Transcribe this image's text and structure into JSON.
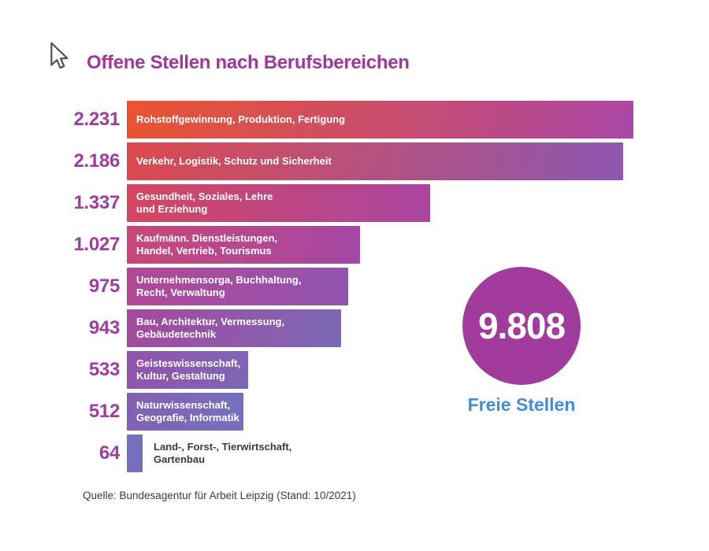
{
  "title": "Offene Stellen nach Berufsbereichen",
  "colors": {
    "title_color": "#A335A3",
    "value_color": "#A13AA2",
    "circle_color": "#A23C9C",
    "caption_color": "#3F8EDB",
    "footer_color": "#3C3C3C",
    "dark_text_color": "#3A3A3A"
  },
  "chart_data": {
    "type": "bar",
    "orientation": "horizontal",
    "title": "Offene Stellen nach Berufsbereichen",
    "xlim": [
      0,
      2231
    ],
    "grid": false,
    "legend": "none",
    "categories": [
      "Rohstoffgewinnung, Produktion, Fertigung",
      "Verkehr, Logistik, Schutz und Sicherheit",
      "Gesundheit, Soziales, Lehre und Erziehung",
      "Kaufmänn. Dienstleistungen, Handel, Vertrieb, Tourismus",
      "Unternehmensorga, Buchhaltung, Recht, Verwaltung",
      "Bau, Architektur, Vermessung, Gebäudetechnik",
      "Geisteswissenschaft, Kultur, Gestaltung",
      "Naturwissenschaft, Geografie, Informatik",
      "Land-, Forst-, Tierwirtschaft, Gartenbau"
    ],
    "values": [
      2231,
      2186,
      1337,
      1027,
      975,
      943,
      533,
      512,
      64
    ],
    "bars": [
      {
        "value": 2231,
        "value_label": "2.231",
        "label_lines": [
          "Rohstoffgewinnung, Produktion, Fertigung",
          ""
        ],
        "color_start": "#E9542F",
        "color_end": "#A946A6",
        "label_position": "inside"
      },
      {
        "value": 2186,
        "value_label": "2.186",
        "label_lines": [
          "Verkehr, Logistik, Schutz und Sicherheit",
          ""
        ],
        "color_start": "#DB4A4D",
        "color_end": "#8C58B1",
        "label_position": "inside"
      },
      {
        "value": 1337,
        "value_label": "1.337",
        "label_lines": [
          "Gesundheit, Soziales, Lehre",
          "und Erziehung"
        ],
        "color_start": "#D4475F",
        "color_end": "#A845A3",
        "label_position": "inside"
      },
      {
        "value": 1027,
        "value_label": "1.027",
        "label_lines": [
          "Kaufmänn. Dienstleistungen,",
          "Handel, Vertrieb, Tourismus"
        ],
        "color_start": "#C84877",
        "color_end": "#A347A6",
        "label_position": "inside"
      },
      {
        "value": 975,
        "value_label": "975",
        "label_lines": [
          "Unternehmensorga, Buchhaltung,",
          "Recht, Verwaltung"
        ],
        "color_start": "#B24895",
        "color_end": "#8F55AF",
        "label_position": "inside"
      },
      {
        "value": 943,
        "value_label": "943",
        "label_lines": [
          "Bau, Architektur, Vermessung,",
          "Gebäudetechnik"
        ],
        "color_start": "#A4499C",
        "color_end": "#7B68B6",
        "label_position": "inside"
      },
      {
        "value": 533,
        "value_label": "533",
        "label_lines": [
          "Geisteswissenschaft,",
          "Kultur, Gestaltung"
        ],
        "color_start": "#9353A9",
        "color_end": "#7C66B4",
        "label_position": "inside"
      },
      {
        "value": 512,
        "value_label": "512",
        "label_lines": [
          "Naturwissenschaft,",
          "Geografie, Informatik"
        ],
        "color_start": "#8360B3",
        "color_end": "#7470BE",
        "label_position": "inside"
      },
      {
        "value": 64,
        "value_label": "64",
        "label_lines": [
          "Land-, Forst-, Tierwirtschaft,",
          "Gartenbau"
        ],
        "color_start": "#7470BE",
        "color_end": "#7470BE",
        "label_position": "outside"
      }
    ],
    "total": {
      "value_label": "9.808",
      "caption": "Freie Stellen"
    },
    "source": "Quelle: Bundesagentur für Arbeit Leipzig (Stand: 10/2021)"
  }
}
